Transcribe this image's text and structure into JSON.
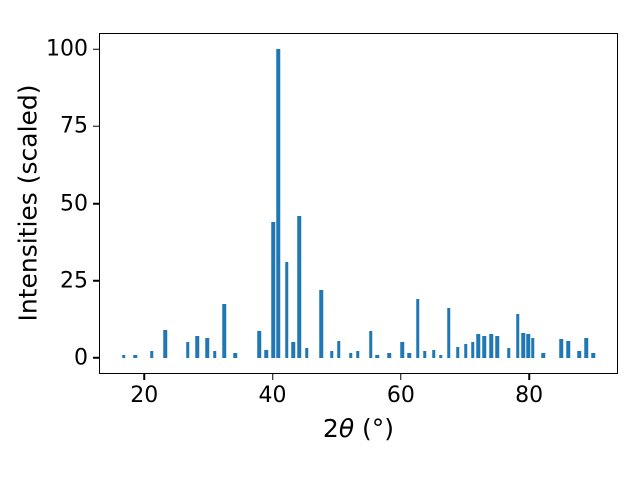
{
  "figure": {
    "background": "#ffffff"
  },
  "chart_data": {
    "type": "bar",
    "title": "",
    "xlabel": "2θ (°)",
    "xlabel_parts": {
      "coefficient": "2",
      "theta": "θ",
      "unit": " (°)"
    },
    "ylabel": "Intensities (scaled)",
    "xlim": [
      13.1,
      93.7
    ],
    "ylim": [
      -5,
      105
    ],
    "xticks": [
      20,
      40,
      60,
      80
    ],
    "yticks": [
      0,
      25,
      50,
      75,
      100
    ],
    "grid": false,
    "legend": "none",
    "bar_color": "#1f77b4",
    "x": [
      16.8,
      18.6,
      21.2,
      23.3,
      26.8,
      28.3,
      29.8,
      31.0,
      32.5,
      34.2,
      37.9,
      39.0,
      40.1,
      40.9,
      42.2,
      43.2,
      44.2,
      45.3,
      47.6,
      49.2,
      50.3,
      52.2,
      53.3,
      55.3,
      56.3,
      58.2,
      60.2,
      61.3,
      62.6,
      63.7,
      65.1,
      66.2,
      67.5,
      68.9,
      70.1,
      71.2,
      72.1,
      73.0,
      74.1,
      75.0,
      76.8,
      78.2,
      79.1,
      79.9,
      80.6,
      82.2,
      85.0,
      86.1,
      87.8,
      88.9,
      90.0
    ],
    "values": [
      1,
      1,
      2,
      9,
      5,
      7,
      6.5,
      2,
      17.5,
      1.5,
      8.5,
      2.5,
      44,
      100,
      31,
      5,
      46,
      3,
      22,
      2,
      5.5,
      1.5,
      2,
      8.5,
      1,
      1.5,
      5,
      1.5,
      19,
      2,
      2.5,
      1,
      16,
      3.5,
      4.5,
      5,
      7.5,
      7,
      7.5,
      7,
      3,
      14,
      8,
      7.5,
      6.5,
      1.5,
      6,
      5.5,
      2,
      6.5,
      1.5
    ]
  }
}
